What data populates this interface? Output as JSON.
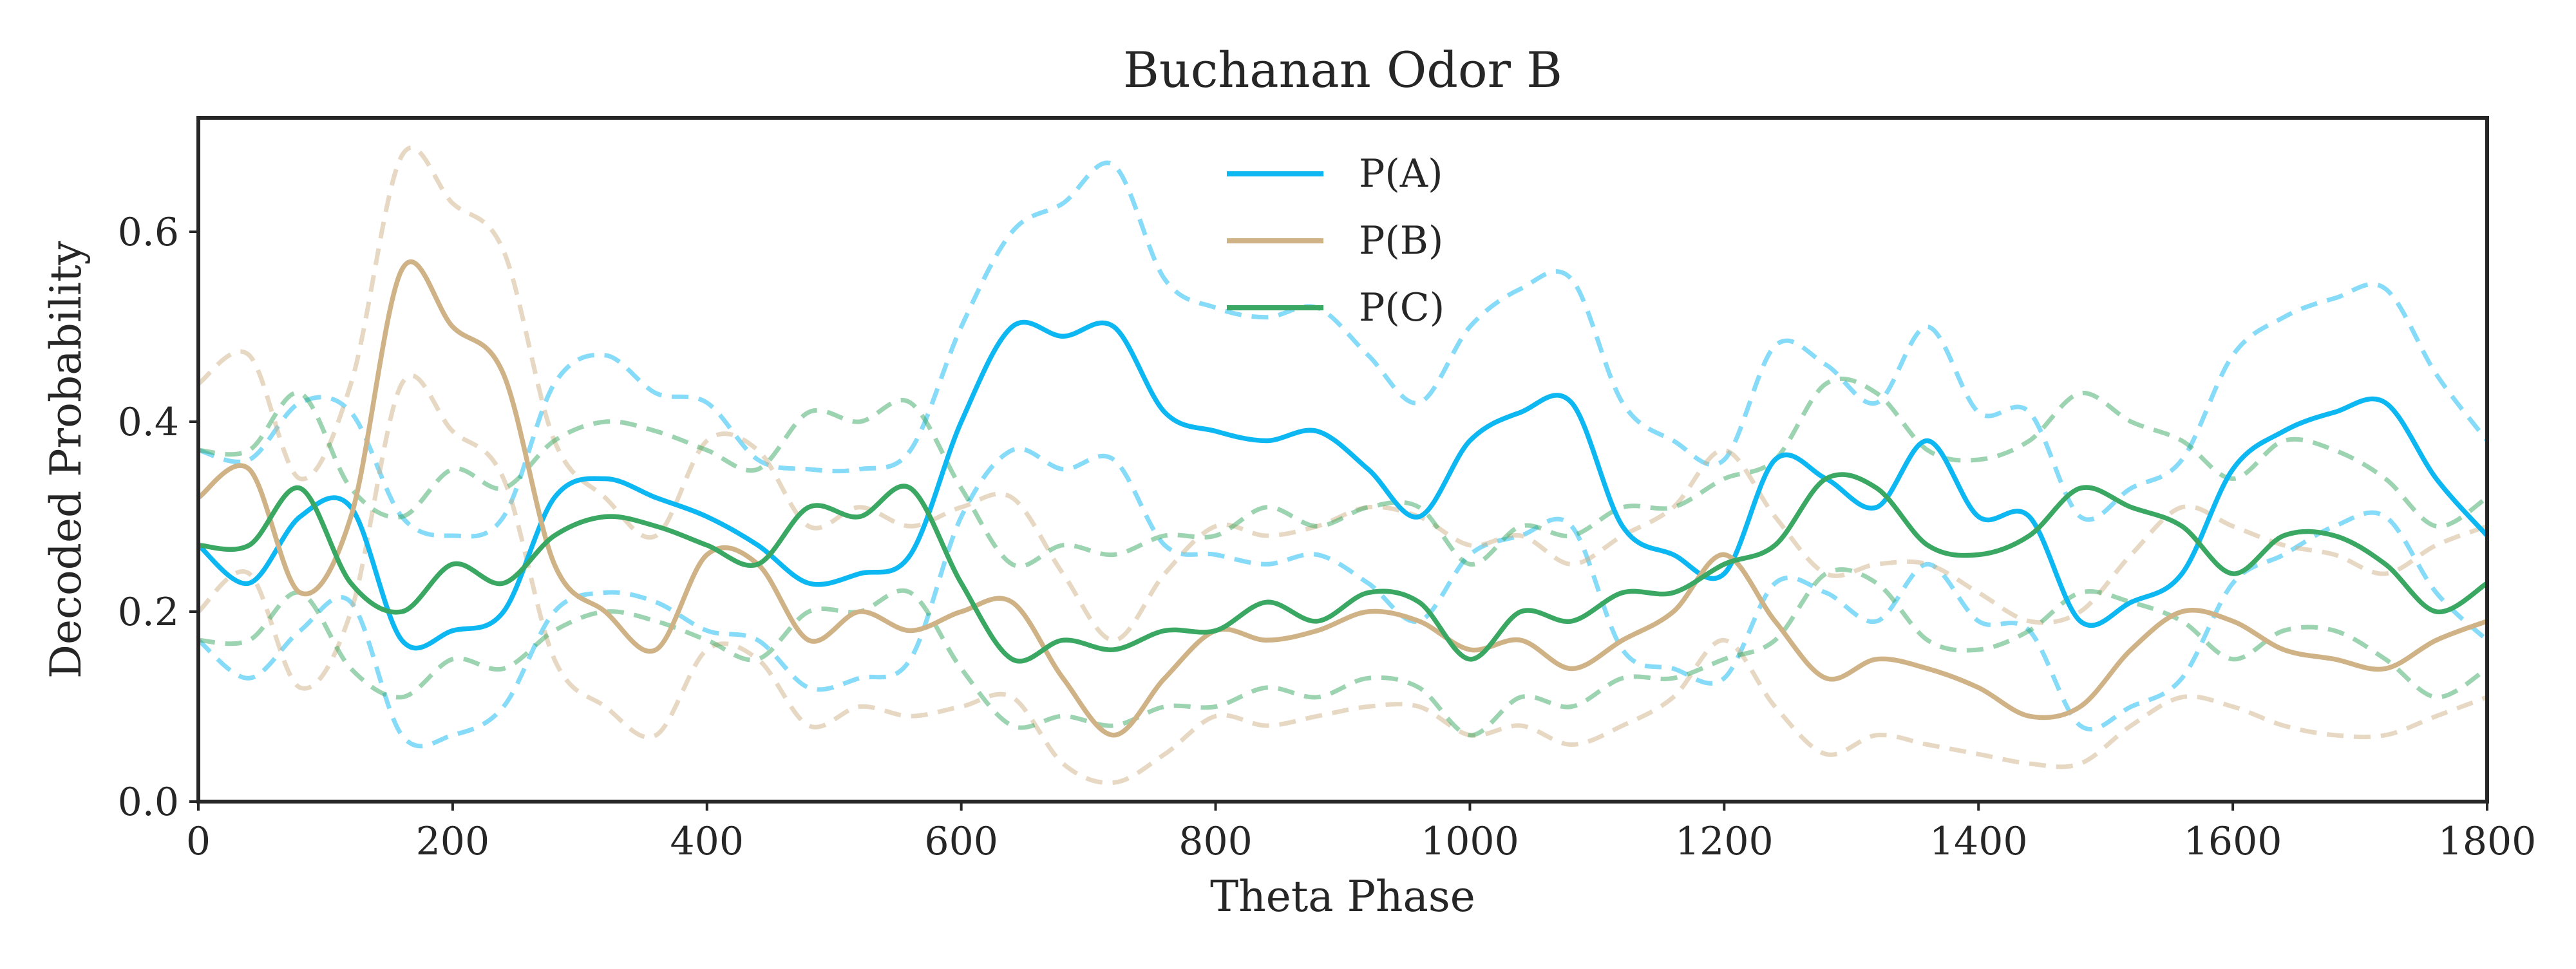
{
  "colors": {
    "A": "#0cb7f2",
    "B": "#d0b287",
    "C": "#3aa862",
    "frame": "#262626",
    "background": "#ffffff"
  },
  "chart_data": {
    "type": "line",
    "title": "Buchanan Odor B",
    "xlabel": "Theta Phase",
    "ylabel": "Decoded Probability",
    "xlim": [
      0,
      1800
    ],
    "ylim": [
      0,
      0.72
    ],
    "xticks": [
      0,
      200,
      400,
      600,
      800,
      1000,
      1200,
      1400,
      1600,
      1800
    ],
    "xtick_labels": [
      "0",
      "200",
      "400",
      "600",
      "800",
      "1000",
      "1200",
      "1400",
      "1600",
      "1800"
    ],
    "yticks": [
      0.0,
      0.2,
      0.4,
      0.6
    ],
    "ytick_labels": [
      "0.0",
      "0.2",
      "0.4",
      "0.6"
    ],
    "grid": false,
    "legend_position": "top-center",
    "x": [
      0,
      40,
      80,
      120,
      160,
      200,
      240,
      280,
      320,
      360,
      400,
      440,
      480,
      520,
      560,
      600,
      640,
      680,
      720,
      760,
      800,
      840,
      880,
      920,
      960,
      1000,
      1040,
      1080,
      1120,
      1160,
      1200,
      1240,
      1280,
      1320,
      1360,
      1400,
      1440,
      1480,
      1520,
      1560,
      1600,
      1640,
      1680,
      1720,
      1760,
      1800
    ],
    "series": [
      {
        "name": "P(A)",
        "key": "A",
        "values": [
          0.27,
          0.23,
          0.3,
          0.31,
          0.17,
          0.18,
          0.2,
          0.32,
          0.34,
          0.32,
          0.3,
          0.27,
          0.23,
          0.24,
          0.26,
          0.4,
          0.5,
          0.49,
          0.5,
          0.41,
          0.39,
          0.38,
          0.39,
          0.35,
          0.3,
          0.38,
          0.41,
          0.42,
          0.29,
          0.26,
          0.24,
          0.36,
          0.34,
          0.31,
          0.38,
          0.3,
          0.3,
          0.19,
          0.21,
          0.24,
          0.35,
          0.39,
          0.41,
          0.42,
          0.34,
          0.28
        ],
        "upper": [
          0.37,
          0.36,
          0.42,
          0.41,
          0.3,
          0.28,
          0.3,
          0.44,
          0.47,
          0.43,
          0.42,
          0.36,
          0.35,
          0.35,
          0.37,
          0.5,
          0.6,
          0.63,
          0.67,
          0.55,
          0.52,
          0.51,
          0.52,
          0.47,
          0.42,
          0.5,
          0.54,
          0.55,
          0.42,
          0.38,
          0.36,
          0.48,
          0.46,
          0.42,
          0.5,
          0.41,
          0.41,
          0.3,
          0.33,
          0.36,
          0.47,
          0.51,
          0.53,
          0.54,
          0.45,
          0.38
        ],
        "lower": [
          0.17,
          0.13,
          0.18,
          0.21,
          0.07,
          0.07,
          0.1,
          0.2,
          0.22,
          0.21,
          0.18,
          0.17,
          0.12,
          0.13,
          0.15,
          0.3,
          0.37,
          0.35,
          0.36,
          0.27,
          0.26,
          0.25,
          0.26,
          0.23,
          0.19,
          0.26,
          0.28,
          0.29,
          0.16,
          0.14,
          0.13,
          0.23,
          0.22,
          0.19,
          0.25,
          0.19,
          0.18,
          0.08,
          0.1,
          0.13,
          0.23,
          0.26,
          0.29,
          0.3,
          0.22,
          0.17
        ]
      },
      {
        "name": "P(B)",
        "key": "B",
        "values": [
          0.32,
          0.35,
          0.22,
          0.3,
          0.56,
          0.5,
          0.45,
          0.25,
          0.2,
          0.16,
          0.26,
          0.25,
          0.17,
          0.2,
          0.18,
          0.2,
          0.21,
          0.13,
          0.07,
          0.13,
          0.18,
          0.17,
          0.18,
          0.2,
          0.19,
          0.16,
          0.17,
          0.14,
          0.17,
          0.2,
          0.26,
          0.19,
          0.13,
          0.15,
          0.14,
          0.12,
          0.09,
          0.1,
          0.16,
          0.2,
          0.19,
          0.16,
          0.15,
          0.14,
          0.17,
          0.19
        ],
        "upper": [
          0.44,
          0.47,
          0.34,
          0.44,
          0.68,
          0.63,
          0.58,
          0.38,
          0.32,
          0.28,
          0.38,
          0.37,
          0.29,
          0.31,
          0.29,
          0.31,
          0.32,
          0.24,
          0.17,
          0.24,
          0.29,
          0.28,
          0.29,
          0.31,
          0.3,
          0.27,
          0.28,
          0.25,
          0.28,
          0.31,
          0.37,
          0.3,
          0.24,
          0.25,
          0.25,
          0.22,
          0.19,
          0.2,
          0.26,
          0.31,
          0.29,
          0.27,
          0.26,
          0.24,
          0.27,
          0.29
        ],
        "lower": [
          0.2,
          0.24,
          0.12,
          0.2,
          0.44,
          0.39,
          0.34,
          0.15,
          0.1,
          0.07,
          0.16,
          0.15,
          0.08,
          0.1,
          0.09,
          0.1,
          0.11,
          0.04,
          0.02,
          0.05,
          0.09,
          0.08,
          0.09,
          0.1,
          0.1,
          0.07,
          0.08,
          0.06,
          0.08,
          0.11,
          0.17,
          0.1,
          0.05,
          0.07,
          0.06,
          0.05,
          0.04,
          0.04,
          0.08,
          0.11,
          0.1,
          0.08,
          0.07,
          0.07,
          0.09,
          0.11
        ]
      },
      {
        "name": "P(C)",
        "key": "C",
        "values": [
          0.27,
          0.27,
          0.33,
          0.23,
          0.2,
          0.25,
          0.23,
          0.28,
          0.3,
          0.29,
          0.27,
          0.25,
          0.31,
          0.3,
          0.33,
          0.23,
          0.15,
          0.17,
          0.16,
          0.18,
          0.18,
          0.21,
          0.19,
          0.22,
          0.21,
          0.15,
          0.2,
          0.19,
          0.22,
          0.22,
          0.25,
          0.27,
          0.34,
          0.33,
          0.27,
          0.26,
          0.28,
          0.33,
          0.31,
          0.29,
          0.24,
          0.28,
          0.28,
          0.25,
          0.2,
          0.23
        ],
        "upper": [
          0.37,
          0.37,
          0.43,
          0.33,
          0.3,
          0.35,
          0.33,
          0.38,
          0.4,
          0.39,
          0.37,
          0.35,
          0.41,
          0.4,
          0.42,
          0.33,
          0.25,
          0.27,
          0.26,
          0.28,
          0.28,
          0.31,
          0.29,
          0.31,
          0.31,
          0.25,
          0.29,
          0.28,
          0.31,
          0.31,
          0.34,
          0.36,
          0.44,
          0.43,
          0.37,
          0.36,
          0.38,
          0.43,
          0.4,
          0.38,
          0.34,
          0.38,
          0.37,
          0.34,
          0.29,
          0.32
        ],
        "lower": [
          0.17,
          0.17,
          0.22,
          0.14,
          0.11,
          0.15,
          0.14,
          0.18,
          0.2,
          0.19,
          0.17,
          0.15,
          0.2,
          0.2,
          0.22,
          0.14,
          0.08,
          0.09,
          0.08,
          0.1,
          0.1,
          0.12,
          0.11,
          0.13,
          0.12,
          0.07,
          0.11,
          0.1,
          0.13,
          0.13,
          0.15,
          0.17,
          0.24,
          0.23,
          0.17,
          0.16,
          0.18,
          0.22,
          0.21,
          0.19,
          0.15,
          0.18,
          0.18,
          0.15,
          0.11,
          0.14
        ]
      }
    ]
  }
}
